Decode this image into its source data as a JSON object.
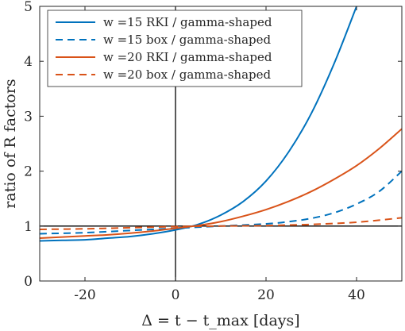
{
  "chart_data": {
    "type": "line",
    "title": "",
    "xlabel": "Δ = t − t_max [days]",
    "ylabel": "ratio of R factors",
    "xlim": [
      -30,
      50
    ],
    "ylim": [
      0,
      5
    ],
    "xticks": [
      -20,
      0,
      20,
      40
    ],
    "yticks": [
      0,
      1,
      2,
      3,
      4,
      5
    ],
    "grid": false,
    "legend_position": "top-left",
    "reference_lines": [
      {
        "orientation": "horizontal",
        "value": 1,
        "color": "#000000"
      },
      {
        "orientation": "vertical",
        "value": 0,
        "color": "#000000"
      }
    ],
    "series": [
      {
        "name": "w =15 RKI / gamma-shaped",
        "color": "#0072BD",
        "style": "solid",
        "x": [
          -30,
          -25,
          -20,
          -15,
          -10,
          -5,
          0,
          5,
          10,
          15,
          20,
          25,
          30,
          35,
          40
        ],
        "y": [
          0.73,
          0.74,
          0.75,
          0.78,
          0.81,
          0.86,
          0.93,
          1.03,
          1.2,
          1.45,
          1.82,
          2.35,
          3.05,
          3.95,
          5.0
        ]
      },
      {
        "name": "w =15 box / gamma-shaped",
        "color": "#0072BD",
        "style": "dashed",
        "x": [
          -30,
          -20,
          -10,
          0,
          10,
          20,
          25,
          30,
          35,
          40,
          45,
          50
        ],
        "y": [
          0.86,
          0.88,
          0.92,
          0.96,
          1.0,
          1.04,
          1.08,
          1.14,
          1.24,
          1.4,
          1.63,
          2.0
        ]
      },
      {
        "name": "w =20 RKI / gamma-shaped",
        "color": "#D95319",
        "style": "solid",
        "x": [
          -30,
          -25,
          -20,
          -15,
          -10,
          -5,
          0,
          5,
          10,
          15,
          20,
          25,
          30,
          35,
          40,
          45,
          50
        ],
        "y": [
          0.78,
          0.8,
          0.82,
          0.84,
          0.87,
          0.91,
          0.96,
          1.01,
          1.08,
          1.18,
          1.3,
          1.45,
          1.63,
          1.85,
          2.1,
          2.41,
          2.77
        ]
      },
      {
        "name": "w =20 box / gamma-shaped",
        "color": "#D95319",
        "style": "dashed",
        "x": [
          -30,
          -20,
          -10,
          0,
          10,
          20,
          30,
          40,
          50
        ],
        "y": [
          0.94,
          0.95,
          0.97,
          0.99,
          1.0,
          1.01,
          1.03,
          1.07,
          1.15
        ]
      }
    ]
  }
}
